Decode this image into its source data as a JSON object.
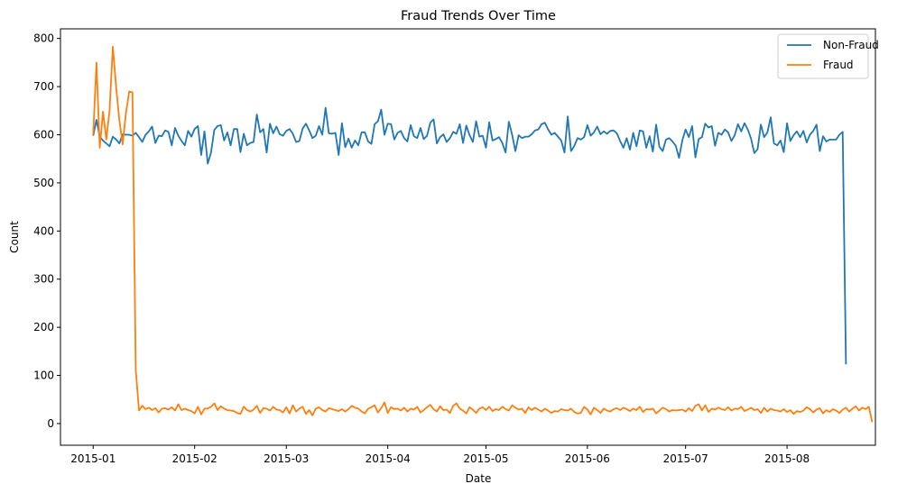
{
  "chart_data": {
    "type": "line",
    "title": "Fraud Trends Over Time",
    "xlabel": "Date",
    "ylabel": "Count",
    "x_start": "2015-01-01",
    "x_end": "2015-08-18",
    "xlim": [
      "2014-12-22",
      "2015-08-28"
    ],
    "ylim": [
      -45,
      820
    ],
    "xticks": [
      {
        "date": "2015-01-01",
        "label": "2015-01"
      },
      {
        "date": "2015-02-01",
        "label": "2015-02"
      },
      {
        "date": "2015-03-01",
        "label": "2015-03"
      },
      {
        "date": "2015-04-01",
        "label": "2015-04"
      },
      {
        "date": "2015-05-01",
        "label": "2015-05"
      },
      {
        "date": "2015-06-01",
        "label": "2015-06"
      },
      {
        "date": "2015-07-01",
        "label": "2015-07"
      },
      {
        "date": "2015-08-01",
        "label": "2015-08"
      }
    ],
    "yticks": [
      0,
      100,
      200,
      300,
      400,
      500,
      600,
      700,
      800
    ],
    "grid": false,
    "legend_position": "top-right",
    "series": [
      {
        "name": "Non-Fraud",
        "color": "#1f77b4",
        "values": [
          598,
          631,
          596,
          588,
          582,
          576,
          596,
          590,
          582,
          601,
          600,
          600,
          598,
          604,
          595,
          585,
          600,
          607,
          617,
          583,
          598,
          597,
          609,
          606,
          578,
          614,
          598,
          587,
          578,
          608,
          596,
          612,
          618,
          558,
          607,
          540,
          563,
          610,
          618,
          620,
          588,
          605,
          578,
          612,
          612,
          564,
          602,
          578,
          583,
          585,
          642,
          605,
          612,
          563,
          623,
          603,
          617,
          601,
          598,
          608,
          612,
          602,
          585,
          587,
          613,
          623,
          609,
          593,
          598,
          618,
          600,
          656,
          603,
          602,
          604,
          558,
          624,
          574,
          592,
          573,
          588,
          578,
          605,
          605,
          586,
          581,
          622,
          628,
          652,
          600,
          623,
          622,
          590,
          604,
          608,
          593,
          586,
          620,
          597,
          593,
          614,
          591,
          598,
          625,
          632,
          582,
          595,
          601,
          585,
          593,
          606,
          602,
          622,
          583,
          619,
          599,
          585,
          628,
          596,
          598,
          573,
          626,
          588,
          591,
          595,
          583,
          563,
          627,
          600,
          566,
          599,
          593,
          596,
          596,
          601,
          609,
          611,
          622,
          625,
          611,
          600,
          604,
          596,
          588,
          563,
          638,
          566,
          577,
          593,
          590,
          595,
          620,
          598,
          605,
          617,
          601,
          607,
          602,
          608,
          609,
          603,
          587,
          573,
          593,
          569,
          604,
          576,
          609,
          607,
          573,
          597,
          565,
          621,
          575,
          566,
          590,
          593,
          586,
          577,
          552,
          588,
          611,
          595,
          618,
          553,
          591,
          595,
          623,
          615,
          618,
          577,
          604,
          600,
          611,
          605,
          587,
          599,
          622,
          607,
          624,
          611,
          592,
          562,
          570,
          621,
          595,
          605,
          636,
          582,
          578,
          588,
          564,
          624,
          587,
          599,
          607,
          595,
          608,
          584,
          600,
          608,
          621,
          566,
          597,
          586,
          590,
          590,
          590,
          600,
          606,
          123
        ]
      },
      {
        "name": "Fraud",
        "color": "#ff7f0e",
        "values": [
          600,
          750,
          573,
          648,
          590,
          650,
          783,
          700,
          630,
          580,
          645,
          690,
          688,
          112,
          27,
          37,
          30,
          33,
          28,
          32,
          23,
          31,
          32,
          29,
          34,
          27,
          40,
          28,
          31,
          28,
          26,
          21,
          35,
          19,
          31,
          31,
          35,
          42,
          28,
          36,
          31,
          28,
          27,
          26,
          22,
          20,
          35,
          28,
          25,
          29,
          37,
          22,
          32,
          31,
          27,
          35,
          29,
          28,
          23,
          34,
          21,
          38,
          25,
          31,
          35,
          20,
          28,
          17,
          31,
          34,
          28,
          25,
          32,
          30,
          28,
          26,
          30,
          25,
          30,
          37,
          33,
          31,
          25,
          21,
          31,
          34,
          38,
          23,
          32,
          44,
          22,
          34,
          30,
          31,
          27,
          33,
          25,
          31,
          29,
          35,
          23,
          28,
          34,
          39,
          30,
          25,
          36,
          28,
          29,
          22,
          37,
          42,
          31,
          27,
          21,
          34,
          29,
          22,
          31,
          34,
          28,
          35,
          26,
          30,
          28,
          35,
          30,
          27,
          38,
          33,
          29,
          31,
          22,
          34,
          28,
          33,
          29,
          25,
          31,
          27,
          22,
          26,
          25,
          30,
          28,
          27,
          31,
          24,
          21,
          22,
          35,
          29,
          19,
          33,
          28,
          22,
          31,
          27,
          25,
          30,
          32,
          28,
          33,
          30,
          26,
          31,
          28,
          35,
          24,
          30,
          29,
          31,
          21,
          27,
          33,
          30,
          25,
          28,
          27,
          28,
          29,
          25,
          32,
          26,
          37,
          40,
          27,
          38,
          24,
          31,
          29,
          33,
          30,
          28,
          34,
          27,
          31,
          30,
          35,
          26,
          29,
          33,
          28,
          30,
          22,
          33,
          25,
          31,
          28,
          27,
          25,
          30,
          24,
          28,
          20,
          26,
          24,
          27,
          34,
          30,
          23,
          29,
          32,
          21,
          28,
          24,
          30,
          27,
          22,
          29,
          33,
          25,
          31,
          36,
          27,
          33,
          30,
          35,
          3
        ]
      }
    ]
  }
}
